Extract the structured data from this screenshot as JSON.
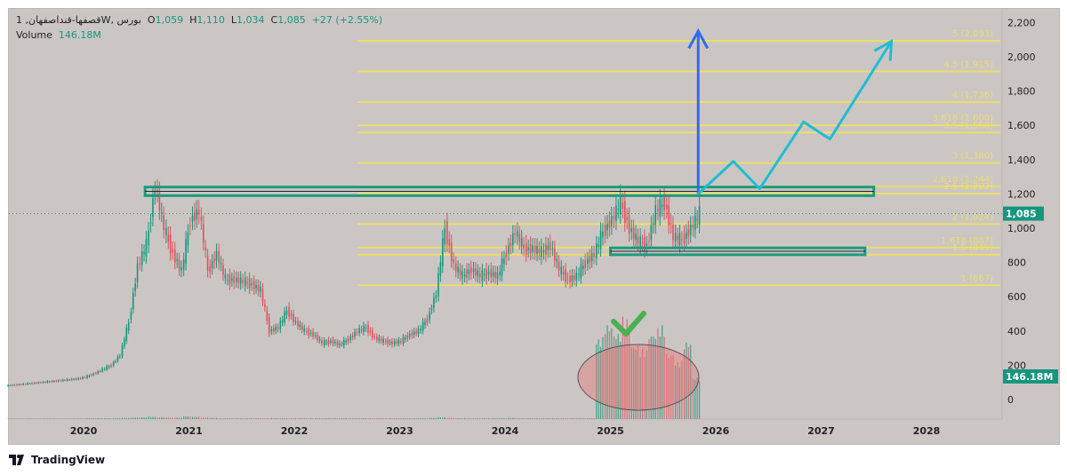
{
  "header": {
    "symbol": "قصفها-قنداصفهان, 1W, بورس",
    "open_label": "O",
    "open": "1,059",
    "high_label": "H",
    "high": "1,110",
    "low_label": "L",
    "low": "1,034",
    "close_label": "C",
    "close": "1,085",
    "change": "+27 (+2.55%)",
    "volume_label": "Volume",
    "volume": "146.18M"
  },
  "branding": {
    "logo_text": "TradingView"
  },
  "colors": {
    "up": "#16967e",
    "down": "#e0505c",
    "fib": "#f2e35a",
    "zone": "#1b9a7f",
    "arrow_blue": "#2f6bf0",
    "arrow_cyan": "#1fbcd3",
    "check": "#4caf50",
    "background": "#cbc6c4"
  },
  "price_tag": "1,085",
  "volume_tag": "146.18M",
  "chart_data": {
    "type": "candlestick",
    "interval": "monthly approximation of weekly candles",
    "ylim": [
      0,
      2200
    ],
    "yticks": [
      "2,200",
      "2,000",
      "1,800",
      "1,600",
      "1,400",
      "1,200",
      "1,000",
      "800",
      "600",
      "400",
      "200",
      "0"
    ],
    "ytick_values": [
      2200,
      2000,
      1800,
      1600,
      1400,
      1200,
      1000,
      800,
      600,
      400,
      200,
      0
    ],
    "xticks": [
      "2020",
      "2021",
      "2022",
      "2023",
      "2024",
      "2025",
      "2026",
      "2027",
      "2028"
    ],
    "start": "2019-04",
    "closes": [
      85,
      90,
      95,
      100,
      105,
      110,
      115,
      120,
      130,
      150,
      175,
      200,
      260,
      450,
      780,
      900,
      1250,
      1000,
      850,
      750,
      1050,
      1100,
      750,
      850,
      700,
      700,
      690,
      670,
      640,
      400,
      420,
      520,
      450,
      400,
      380,
      330,
      340,
      320,
      350,
      400,
      420,
      360,
      340,
      330,
      340,
      380,
      400,
      470,
      620,
      1000,
      780,
      720,
      760,
      720,
      740,
      720,
      860,
      980,
      880,
      880,
      860,
      900,
      760,
      700,
      720,
      800,
      850,
      980,
      1050,
      1150,
      1000,
      920,
      900,
      1100,
      1150,
      950,
      930,
      1000,
      1085
    ],
    "volume_m": [
      2,
      2,
      2,
      2,
      2,
      2,
      2,
      2,
      2,
      3,
      3,
      3,
      3,
      4,
      5,
      6,
      8,
      6,
      5,
      5,
      9,
      8,
      5,
      4,
      3,
      3,
      3,
      3,
      3,
      3,
      3,
      3,
      3,
      3,
      3,
      3,
      3,
      3,
      3,
      3,
      3,
      3,
      3,
      3,
      3,
      3,
      3,
      3,
      4,
      6,
      4,
      3,
      3,
      3,
      3,
      3,
      3,
      4,
      3,
      3,
      3,
      3,
      3,
      3,
      3,
      3,
      3,
      280,
      330,
      300,
      350,
      260,
      240,
      300,
      320,
      230,
      200,
      270,
      146.18
    ],
    "fib_levels": [
      {
        "label": "5 (2,093)",
        "value": 2093
      },
      {
        "label": "4.5 (1,915)",
        "value": 1915
      },
      {
        "label": "4 (1,736)",
        "value": 1736
      },
      {
        "label": "3.618 (1,600)",
        "value": 1600
      },
      {
        "label": "3.5 (1,558)",
        "value": 1558
      },
      {
        "label": "3 (1,380)",
        "value": 1380
      },
      {
        "label": "2.618 (1,244)",
        "value": 1244
      },
      {
        "label": "2.5 (1,202)",
        "value": 1202
      },
      {
        "label": "2 (1,024)",
        "value": 1024
      },
      {
        "label": "1.618 (887)",
        "value": 887
      },
      {
        "label": "1.5 (845)",
        "value": 845
      },
      {
        "label": "1 (667)",
        "value": 667
      }
    ],
    "zones": [
      {
        "name": "resistance",
        "from": "2020-08",
        "to": "2027-07",
        "top": 1240,
        "bottom": 1190
      },
      {
        "name": "support",
        "from": "2025-01",
        "to": "2027-06",
        "top": 885,
        "bottom": 845
      }
    ],
    "projection_blue": [
      [
        "2025-11",
        1200
      ],
      [
        "2025-11",
        2150
      ]
    ],
    "projection_cyan": [
      [
        "2025-11",
        1200
      ],
      [
        "2026-03",
        1390
      ],
      [
        "2026-06",
        1230
      ],
      [
        "2026-11",
        1620
      ],
      [
        "2027-02",
        1520
      ],
      [
        "2027-09",
        2090
      ]
    ]
  }
}
